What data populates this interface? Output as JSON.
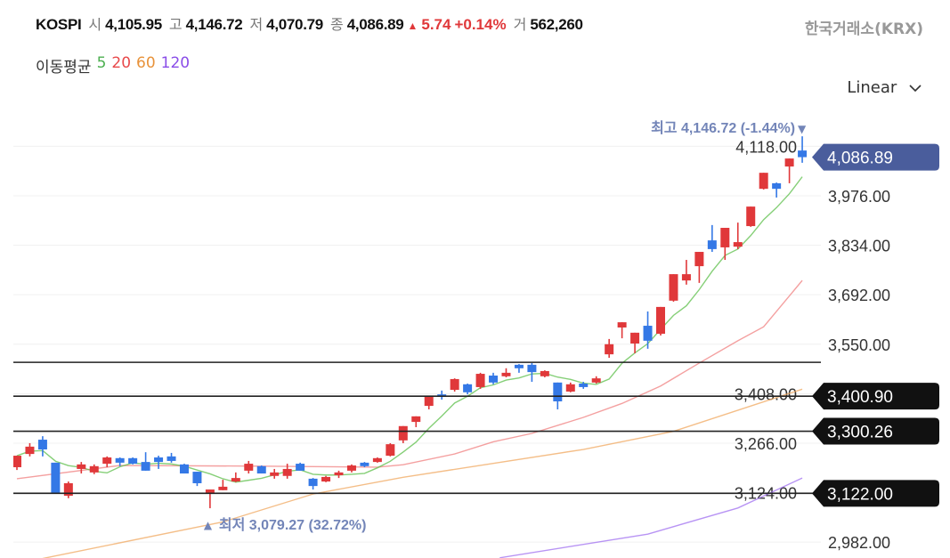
{
  "header": {
    "symbol": "KOSPI",
    "open_label": "시",
    "open": "4,105.95",
    "high_label": "고",
    "high": "4,146.72",
    "low_label": "저",
    "low": "4,070.79",
    "close_label": "종",
    "close": "4,086.89",
    "change_arrow": "▲",
    "change": "5.74",
    "change_pct": "+0.14%",
    "volume_label": "거",
    "volume": "562,260",
    "source": "한국거래소(KRX)"
  },
  "moving_average": {
    "label": "이동평균",
    "periods": [
      "5",
      "20",
      "60",
      "120"
    ],
    "colors": [
      "#4caf50",
      "#e8494b",
      "#e8923a",
      "#8a4de8"
    ]
  },
  "scale_selector": {
    "value": "Linear",
    "icon": "chevron-down-icon"
  },
  "chart_data": {
    "type": "candlestick",
    "title": "KOSPI",
    "up_color": "#e0383a",
    "down_color": "#3478e6",
    "yticks": [
      4118,
      3976,
      3834,
      3692,
      3550,
      3408,
      3266,
      3124,
      2982
    ],
    "ytick_labels": [
      "4,118.00",
      "3,976.00",
      "3,834.00",
      "3,692.00",
      "3,550.00",
      "3,408.00",
      "3,266.00",
      "3,124.00",
      "2,982.00"
    ],
    "ylim": [
      2930,
      4160
    ],
    "ohlc": [
      [
        3197,
        3230,
        3189,
        3230
      ],
      [
        3235,
        3266,
        3228,
        3256
      ],
      [
        3276,
        3286,
        3228,
        3248
      ],
      [
        3210,
        3210,
        3123,
        3123
      ],
      [
        3115,
        3156,
        3108,
        3151
      ],
      [
        3192,
        3212,
        3179,
        3205
      ],
      [
        3182,
        3205,
        3177,
        3200
      ],
      [
        3207,
        3228,
        3197,
        3225
      ],
      [
        3223,
        3225,
        3200,
        3210
      ],
      [
        3223,
        3225,
        3205,
        3207
      ],
      [
        3212,
        3240,
        3187,
        3187
      ],
      [
        3225,
        3230,
        3192,
        3212
      ],
      [
        3228,
        3238,
        3210,
        3215
      ],
      [
        3205,
        3207,
        3179,
        3179
      ],
      [
        3184,
        3184,
        3143,
        3151
      ],
      [
        3123,
        3133,
        3079.27,
        3133
      ],
      [
        3131,
        3161,
        3131,
        3141
      ],
      [
        3156,
        3182,
        3154,
        3166
      ],
      [
        3187,
        3215,
        3179,
        3207
      ],
      [
        3200,
        3202,
        3179,
        3179
      ],
      [
        3172,
        3192,
        3164,
        3182
      ],
      [
        3172,
        3207,
        3164,
        3192
      ],
      [
        3207,
        3210,
        3187,
        3187
      ],
      [
        3164,
        3166,
        3133,
        3143
      ],
      [
        3156,
        3172,
        3154,
        3169
      ],
      [
        3174,
        3187,
        3166,
        3182
      ],
      [
        3187,
        3205,
        3182,
        3202
      ],
      [
        3210,
        3212,
        3197,
        3200
      ],
      [
        3212,
        3225,
        3210,
        3223
      ],
      [
        3230,
        3266,
        3228,
        3263
      ],
      [
        3274,
        3315,
        3266,
        3315
      ],
      [
        3327,
        3343,
        3312,
        3343
      ],
      [
        3373,
        3399,
        3363,
        3399
      ],
      [
        3406,
        3417,
        3391,
        3399
      ],
      [
        3419,
        3452,
        3414,
        3450
      ],
      [
        3435,
        3437,
        3406,
        3412
      ],
      [
        3427,
        3468,
        3422,
        3465
      ],
      [
        3460,
        3468,
        3435,
        3440
      ],
      [
        3458,
        3481,
        3455,
        3468
      ],
      [
        3491,
        3493,
        3468,
        3481
      ],
      [
        3491,
        3496,
        3442,
        3470
      ],
      [
        3458,
        3475,
        3455,
        3473
      ],
      [
        3440,
        3440,
        3363,
        3386
      ],
      [
        3414,
        3440,
        3412,
        3435
      ],
      [
        3437,
        3442,
        3422,
        3427
      ],
      [
        3440,
        3458,
        3437,
        3452
      ],
      [
        3521,
        3565,
        3511,
        3550
      ],
      [
        3598,
        3613,
        3567,
        3613
      ],
      [
        3552,
        3583,
        3524,
        3583
      ],
      [
        3603,
        3644,
        3537,
        3560
      ],
      [
        3580,
        3657,
        3575,
        3657
      ],
      [
        3675,
        3751,
        3672,
        3751
      ],
      [
        3733,
        3792,
        3721,
        3751
      ],
      [
        3774,
        3815,
        3726,
        3815
      ],
      [
        3848,
        3892,
        3815,
        3823
      ],
      [
        3828,
        3884,
        3792,
        3884
      ],
      [
        3830,
        3899,
        3823,
        3843
      ],
      [
        3889,
        3945,
        3887,
        3945
      ],
      [
        3996,
        4042,
        3994,
        4042
      ],
      [
        4012,
        4014,
        3971,
        3996
      ],
      [
        4060,
        4083,
        4012,
        4083
      ],
      [
        4105.95,
        4146.72,
        4070.79,
        4086.89
      ]
    ],
    "ma20": [
      [
        1,
        3164
      ],
      [
        9,
        3202
      ],
      [
        20,
        3200
      ],
      [
        29,
        3197
      ],
      [
        31,
        3204
      ],
      [
        35,
        3235
      ],
      [
        38,
        3270
      ],
      [
        41,
        3294
      ],
      [
        45,
        3340
      ],
      [
        48,
        3380
      ],
      [
        51,
        3430
      ],
      [
        54,
        3496
      ],
      [
        57,
        3560
      ],
      [
        59,
        3600
      ],
      [
        62,
        3733
      ]
    ],
    "ma60": [
      [
        3,
        2935
      ],
      [
        17,
        3040
      ],
      [
        24,
        3120
      ],
      [
        31,
        3168
      ],
      [
        45,
        3248
      ],
      [
        52,
        3300
      ],
      [
        62,
        3421
      ]
    ],
    "ma120": [
      [
        38.5,
        2937
      ],
      [
        50,
        3005
      ],
      [
        57,
        3080
      ],
      [
        62,
        3166
      ]
    ],
    "hlines": [
      {
        "value": 3498,
        "label": ""
      },
      {
        "value": 3400.9,
        "label": "3,400.90"
      },
      {
        "value": 3300.26,
        "label": "3,300.26"
      },
      {
        "value": 3122.0,
        "label": "3,122.00"
      }
    ],
    "current": {
      "value": 4086.89,
      "label": "4,086.89",
      "color": "#4a5d9c"
    },
    "max_annotation": {
      "text": "최고 4,146.72 (-1.44%)",
      "marker": "▼",
      "value": 4146.72,
      "index": 62
    },
    "min_annotation": {
      "text": "최저 3,079.27 (32.72%)",
      "marker": "▲",
      "value": 3079.27,
      "index": 16
    }
  }
}
